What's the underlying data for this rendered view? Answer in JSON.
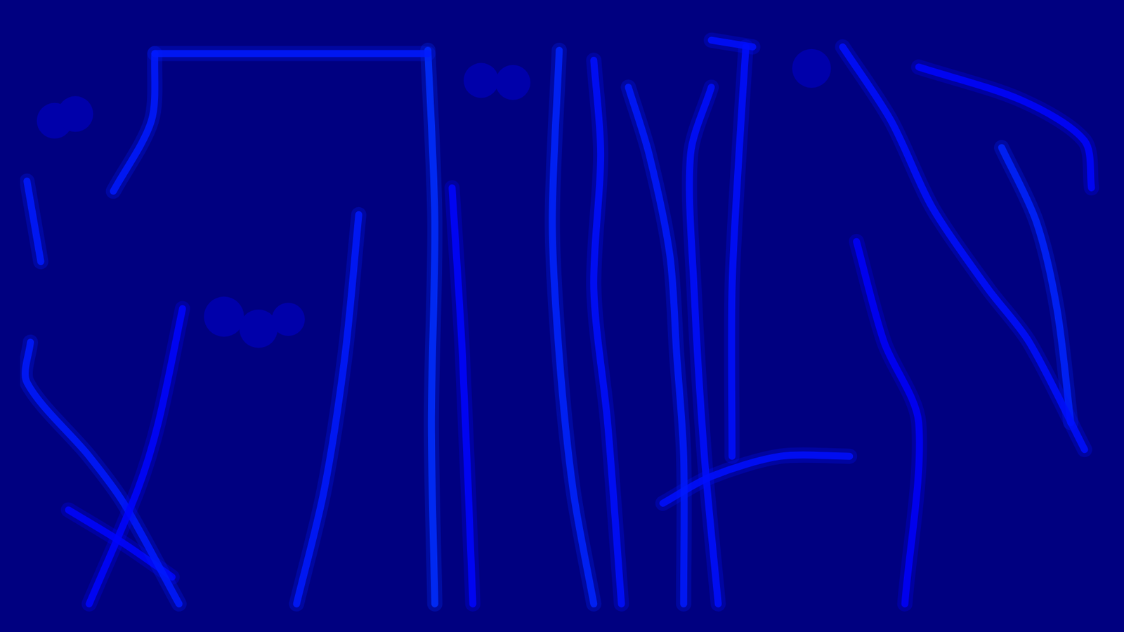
{
  "chart_data": {
    "type": "density_map",
    "xlim": [
      0,
      1568
    ],
    "ylim": [
      0,
      882
    ],
    "tick_labels": false,
    "grid": false,
    "color_range": [
      0,
      1
    ],
    "tracks": [
      {
        "value": 0.15,
        "points": [
          [
            195,
            50
          ],
          [
            590,
            50
          ]
        ]
      },
      {
        "value": 0.15,
        "points": [
          [
            195,
            50
          ],
          [
            190,
            150
          ],
          [
            135,
            255
          ]
        ]
      },
      {
        "value": 0.15,
        "points": [
          [
            10,
            240
          ],
          [
            30,
            360
          ]
        ]
      },
      {
        "value": 0.17,
        "points": [
          [
            590,
            45
          ],
          [
            600,
            300
          ],
          [
            595,
            600
          ],
          [
            600,
            870
          ]
        ]
      },
      {
        "value": 0.13,
        "points": [
          [
            625,
            250
          ],
          [
            640,
            500
          ],
          [
            655,
            870
          ]
        ]
      },
      {
        "value": 0.15,
        "points": [
          [
            490,
            290
          ],
          [
            470,
            500
          ],
          [
            440,
            700
          ],
          [
            400,
            870
          ]
        ]
      },
      {
        "value": 0.13,
        "points": [
          [
            235,
            430
          ],
          [
            200,
            600
          ],
          [
            170,
            700
          ],
          [
            100,
            870
          ]
        ]
      },
      {
        "value": 0.15,
        "points": [
          [
            15,
            480
          ],
          [
            10,
            540
          ],
          [
            100,
            650
          ],
          [
            150,
            720
          ],
          [
            230,
            870
          ]
        ]
      },
      {
        "value": 0.13,
        "points": [
          [
            70,
            730
          ],
          [
            150,
            780
          ],
          [
            220,
            830
          ]
        ]
      },
      {
        "value": 0.16,
        "points": [
          [
            780,
            45
          ],
          [
            770,
            300
          ],
          [
            780,
            500
          ],
          [
            800,
            700
          ],
          [
            830,
            870
          ]
        ]
      },
      {
        "value": 0.14,
        "points": [
          [
            830,
            60
          ],
          [
            840,
            200
          ],
          [
            830,
            400
          ],
          [
            850,
            600
          ],
          [
            870,
            870
          ]
        ]
      },
      {
        "value": 0.15,
        "points": [
          [
            880,
            100
          ],
          [
            910,
            200
          ],
          [
            940,
            350
          ],
          [
            950,
            500
          ],
          [
            960,
            650
          ],
          [
            960,
            870
          ]
        ]
      },
      {
        "value": 0.14,
        "points": [
          [
            1000,
            100
          ],
          [
            970,
            200
          ],
          [
            975,
            400
          ],
          [
            990,
            650
          ],
          [
            1010,
            870
          ]
        ]
      },
      {
        "value": 0.14,
        "points": [
          [
            1050,
            40
          ],
          [
            1040,
            200
          ],
          [
            1030,
            400
          ],
          [
            1030,
            650
          ]
        ]
      },
      {
        "value": 0.14,
        "points": [
          [
            930,
            720
          ],
          [
            1000,
            680
          ],
          [
            1100,
            650
          ],
          [
            1200,
            650
          ]
        ]
      },
      {
        "value": 0.14,
        "points": [
          [
            1190,
            40
          ],
          [
            1260,
            150
          ],
          [
            1320,
            280
          ],
          [
            1400,
            400
          ],
          [
            1460,
            480
          ],
          [
            1540,
            640
          ]
        ]
      },
      {
        "value": 0.13,
        "points": [
          [
            1300,
            70
          ],
          [
            1450,
            120
          ],
          [
            1540,
            180
          ],
          [
            1550,
            250
          ]
        ]
      },
      {
        "value": 0.16,
        "points": [
          [
            1420,
            190
          ],
          [
            1470,
            300
          ],
          [
            1500,
            430
          ],
          [
            1520,
            600
          ]
        ]
      },
      {
        "value": 0.12,
        "points": [
          [
            1210,
            330
          ],
          [
            1250,
            480
          ],
          [
            1300,
            600
          ],
          [
            1280,
            870
          ]
        ]
      },
      {
        "value": 0.14,
        "points": [
          [
            1000,
            30
          ],
          [
            1060,
            40
          ]
        ]
      }
    ],
    "peaks": [
      {
        "x": 50,
        "y": 150,
        "value": 0.5
      },
      {
        "x": 80,
        "y": 140,
        "value": 0.5
      },
      {
        "x": 667,
        "y": 90,
        "value": 0.45
      },
      {
        "x": 713,
        "y": 93,
        "value": 0.45
      },
      {
        "x": 1145,
        "y": 72,
        "value": 0.8
      },
      {
        "x": 295,
        "y": 442,
        "value": 1.0
      },
      {
        "x": 345,
        "y": 460,
        "value": 0.75
      },
      {
        "x": 388,
        "y": 446,
        "value": 0.35
      }
    ]
  }
}
